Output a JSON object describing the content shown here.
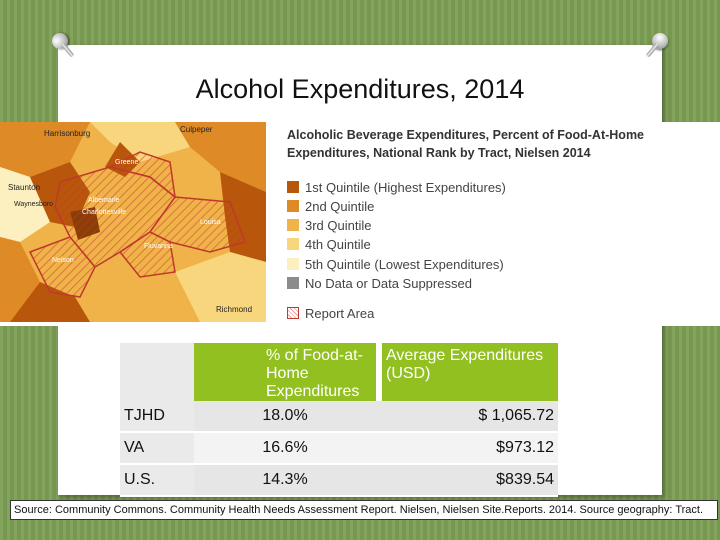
{
  "title": "Alcohol Expenditures, 2014",
  "map": {
    "places": [
      "Harrisonburg",
      "Culpeper",
      "Greene",
      "Staunton",
      "Waynesboro",
      "Albemarle",
      "Charlottesville",
      "Louisa",
      "Fluvanna",
      "Nelson",
      "Richmond"
    ]
  },
  "legend": {
    "title": "Alcoholic Beverage Expenditures, Percent of Food-At-Home Expenditures, National Rank by Tract, Nielsen 2014",
    "items": [
      {
        "label": "1st Quintile (Highest Expenditures)",
        "color": "#b8560b"
      },
      {
        "label": "2nd Quintile",
        "color": "#de8a27"
      },
      {
        "label": "3rd Quintile",
        "color": "#f0b34a"
      },
      {
        "label": "4th Quintile",
        "color": "#f8d67d"
      },
      {
        "label": "5th Quintile (Lowest Expenditures)",
        "color": "#fdf0c0"
      },
      {
        "label": "No Data or Data Suppressed",
        "color": "#8c8c8c"
      },
      {
        "label": "Report Area",
        "color": "#c0392b"
      }
    ]
  },
  "table": {
    "headers": [
      "",
      "% of Food-at-Home Expenditures",
      "Average Expenditures (USD)"
    ],
    "rows": [
      {
        "area": "TJHD",
        "percent": "18.0%",
        "usd": "$ 1,065.72"
      },
      {
        "area": "VA",
        "percent": "16.6%",
        "usd": "$973.12"
      },
      {
        "area": "U.S.",
        "percent": "14.3%",
        "usd": "$839.54"
      }
    ]
  },
  "source": "Source: Community Commons. Community Health Needs Assessment Report. Nielsen, Nielsen Site.Reports. 2014. Source geography: Tract."
}
